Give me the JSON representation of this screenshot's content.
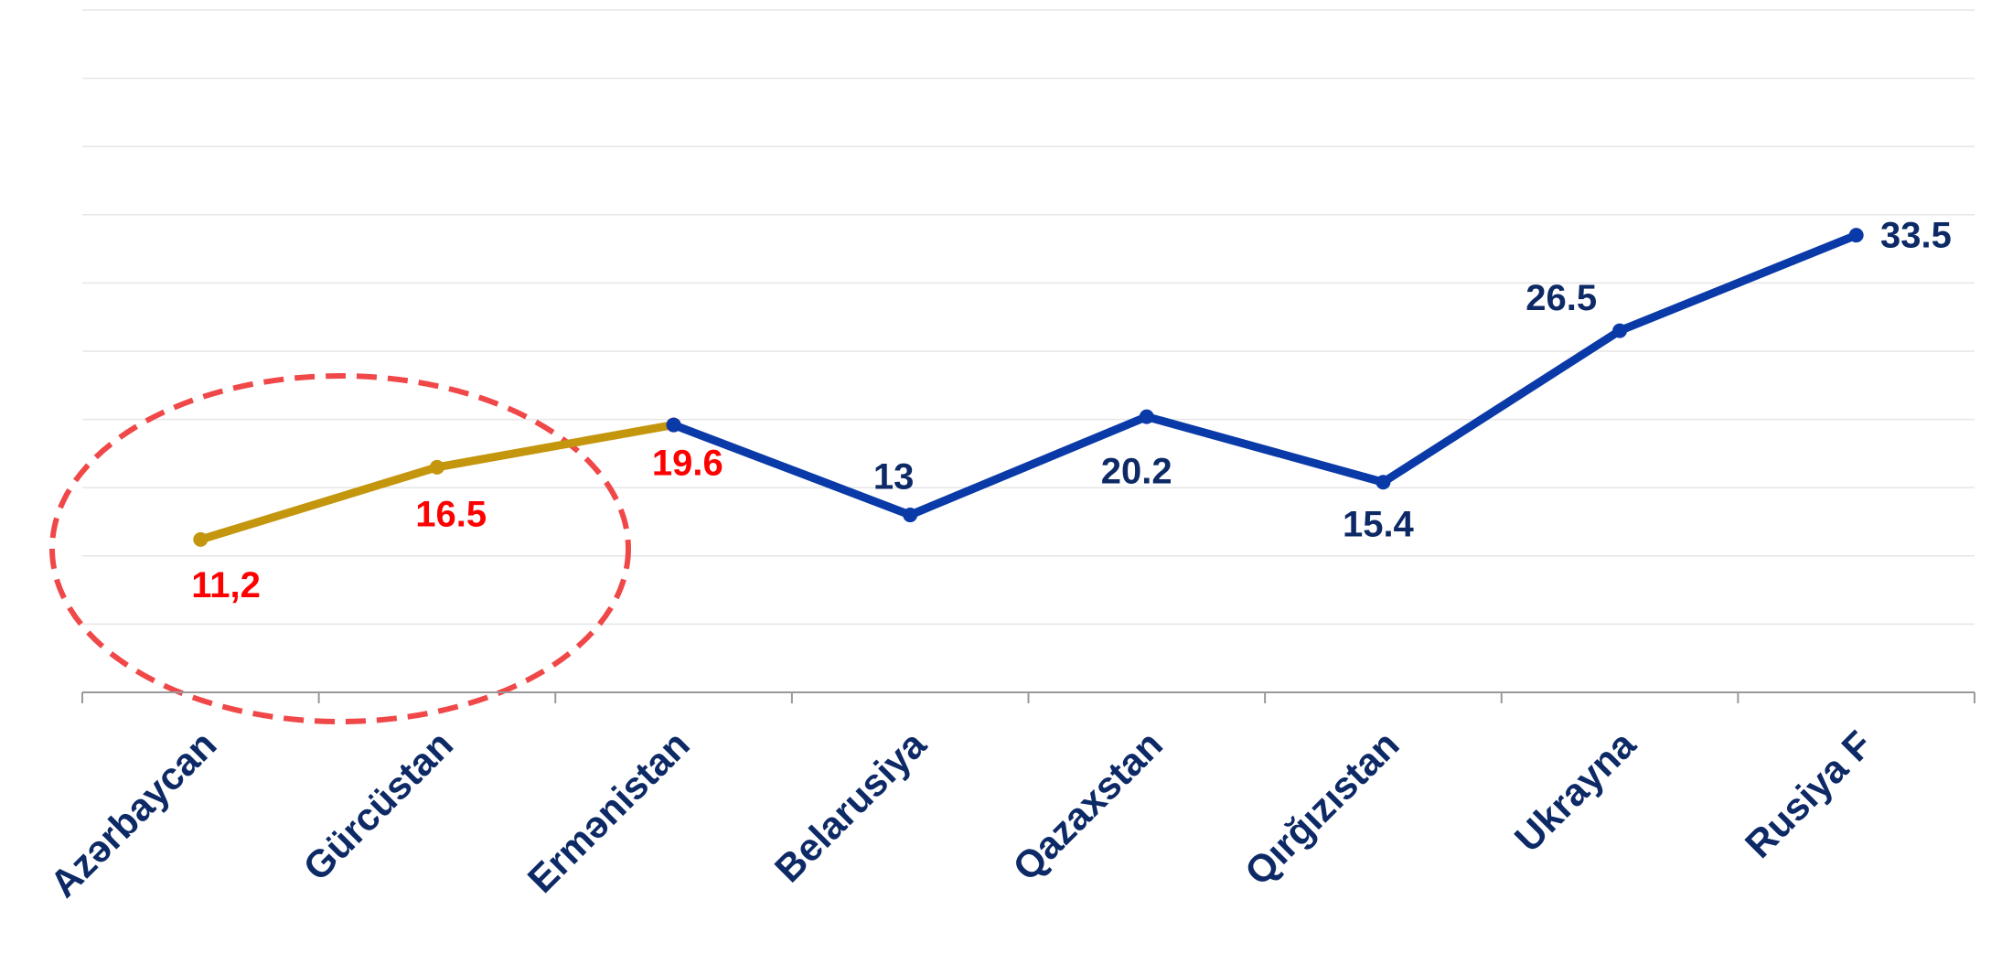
{
  "chart_data": {
    "type": "line",
    "categories": [
      "Azərbaycan",
      "Gürcüstan",
      "Ermənistan",
      "Belarusiya",
      "Qazaxstan",
      "Qırğızıstan",
      "Ukrayna",
      "Rusiya F"
    ],
    "series": [
      {
        "color": "#c4960e",
        "label_color": "#ff0000",
        "values": [
          11.2,
          16.5,
          19.6,
          null,
          null,
          null,
          null,
          null
        ],
        "value_labels": [
          "11,2",
          "16.5",
          "19.6",
          null,
          null,
          null,
          null,
          null
        ]
      },
      {
        "color": "#0a3aa8",
        "label_color": "#0d2a66",
        "values": [
          null,
          null,
          19.6,
          13,
          20.2,
          15.4,
          26.5,
          33.5
        ],
        "value_labels": [
          null,
          null,
          null,
          "13",
          "20.2",
          "15.4",
          "26.5",
          "33.5"
        ]
      }
    ],
    "ylim": [
      0,
      50
    ],
    "yticks": [
      0,
      5,
      10,
      15,
      20,
      25,
      30,
      35,
      40,
      45,
      50
    ],
    "grid": true
  }
}
